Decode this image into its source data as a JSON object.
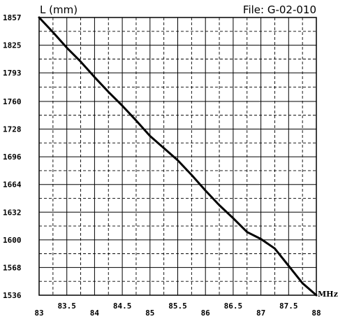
{
  "chart_data": {
    "type": "line",
    "ylabel": "L (mm)",
    "file_label": "File:  G-02-010",
    "x_unit": "MHz",
    "xlim": [
      83,
      88
    ],
    "ylim": [
      1536,
      1857
    ],
    "x_ticks_lower": [
      "83",
      "84",
      "85",
      "86",
      "87",
      "88"
    ],
    "x_ticks_upper": [
      "83.5",
      "84.5",
      "85.5",
      "86.5",
      "87.5"
    ],
    "y_ticks": [
      "1857",
      "1825",
      "1793",
      "1760",
      "1728",
      "1696",
      "1664",
      "1632",
      "1600",
      "1568",
      "1536"
    ],
    "grid": true,
    "series": [
      {
        "x": [
          83,
          83.25,
          83.5,
          83.75,
          84,
          84.25,
          84.5,
          84.75,
          85,
          85.25,
          85.5,
          85.75,
          86,
          86.25,
          86.5,
          86.75,
          87,
          87.25,
          87.5,
          87.75,
          88
        ],
        "values": [
          1857,
          1840,
          1822,
          1806,
          1788,
          1771,
          1755,
          1738,
          1720,
          1706,
          1692,
          1675,
          1657,
          1640,
          1625,
          1609,
          1601,
          1590,
          1570,
          1550,
          1536
        ]
      }
    ]
  }
}
